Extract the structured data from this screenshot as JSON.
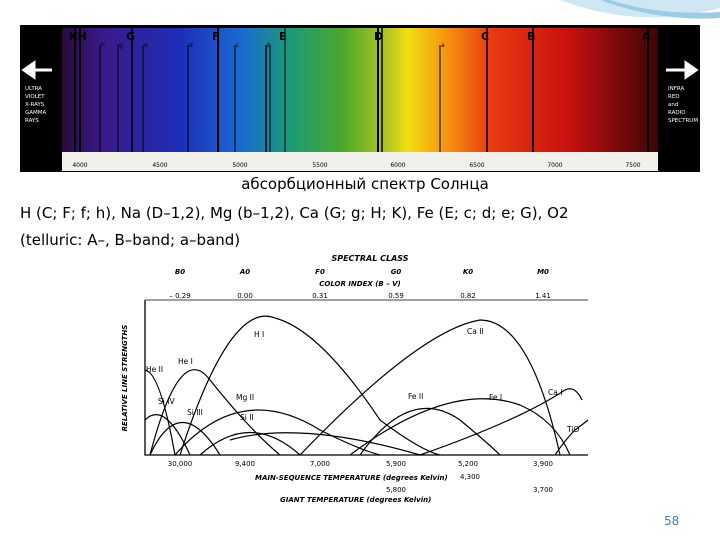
{
  "spectrum": {
    "fraunhofer_lines": [
      "KH",
      "G",
      "F",
      "E",
      "D",
      "C",
      "B",
      "A"
    ],
    "minor_lines": [
      "h",
      "g",
      "e",
      "d",
      "c",
      "b",
      "a"
    ],
    "wavelengths": [
      "4000",
      "4500",
      "5000",
      "5500",
      "6000",
      "6500",
      "7000",
      "7500"
    ],
    "left_label": [
      "ULTRA",
      "VIOLET",
      "X-RAYS",
      "GAMMA",
      "RAYS"
    ],
    "right_label": [
      "INFRA",
      "RED",
      "and",
      "RADIO",
      "SPECTRUM"
    ]
  },
  "caption": "абсорбционный спектр Солнца",
  "text": [
    "H (C; F; f; h), Na (D–1,2), Mg (b–1,2), Ca (G; g; H; K), Fe (E; c; d; e; G), O2",
    "(telluric: A–, B–band; a–band)"
  ],
  "line_chart": {
    "title": "SPECTRAL CLASS",
    "classes": [
      "B0",
      "A0",
      "F0",
      "G0",
      "K0",
      "M0"
    ],
    "color_index_title": "COLOR INDEX (B – V)",
    "color_index": [
      "– 0.29",
      "0.00",
      "0.31",
      "0.59",
      "0.82",
      "1.41"
    ],
    "y_axis_title": "RELATIVE LINE STRENGTHS",
    "curve_labels": [
      "He II",
      "He I",
      "H I",
      "Si IV",
      "Si III",
      "Mg II",
      "Si II",
      "Ca II",
      "Fe II",
      "Fe I",
      "Ca I",
      "TiO"
    ],
    "main_sequence_temps": [
      "30,000",
      "9,400",
      "7,000",
      "5,900",
      "5,200",
      "3,900"
    ],
    "main_sequence_title": "MAIN-SEQUENCE TEMPERATURE (degrees Kelvin)",
    "giant_temps": [
      "5,800",
      "4,300",
      "3,700"
    ],
    "giant_title": "GIANT TEMPERATURE (degrees Kelvin)"
  },
  "page_number": "58"
}
